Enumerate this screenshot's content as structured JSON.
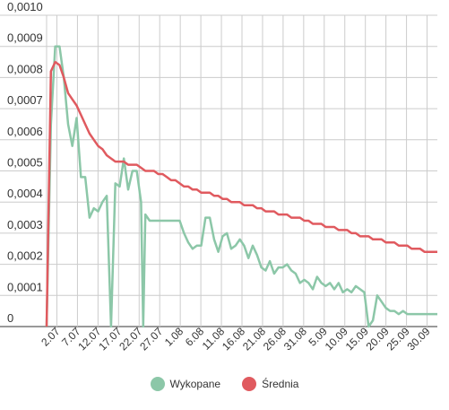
{
  "chart_data": {
    "type": "line",
    "y_ticks": [
      "0",
      "0,0001",
      "0,0002",
      "0,0003",
      "0,0004",
      "0,0005",
      "0,0006",
      "0,0007",
      "0,0008",
      "0,0009",
      "0,0010"
    ],
    "ylim": [
      0,
      0.001
    ],
    "x_tick_labels": [
      "2.07",
      "7.07",
      "12.07",
      "17.07",
      "22.07",
      "27.07",
      "1.08",
      "6.08",
      "11.08",
      "16.08",
      "21.08",
      "26.08",
      "31.08",
      "5.09",
      "10.09",
      "15.09",
      "20.09",
      "25.09",
      "30.09"
    ],
    "xlim": [
      0,
      91
    ],
    "grid": true,
    "legend_position": "bottom",
    "series": [
      {
        "name": "Wykopane",
        "color": "#8cc7a8",
        "points": [
          [
            0,
            0.0
          ],
          [
            1,
            0.00065
          ],
          [
            2,
            0.0009
          ],
          [
            3,
            0.0009
          ],
          [
            4,
            0.0008
          ],
          [
            5,
            0.00065
          ],
          [
            6,
            0.00058
          ],
          [
            7,
            0.00067
          ],
          [
            8,
            0.00048
          ],
          [
            9,
            0.00048
          ],
          [
            10,
            0.00035
          ],
          [
            11,
            0.00038
          ],
          [
            12,
            0.00037
          ],
          [
            13,
            0.0004
          ],
          [
            14,
            0.00042
          ],
          [
            15,
            0.0
          ],
          [
            16,
            0.00046
          ],
          [
            17,
            0.00045
          ],
          [
            18,
            0.00054
          ],
          [
            19,
            0.00044
          ],
          [
            20,
            0.0005
          ],
          [
            21,
            0.0005
          ],
          [
            22,
            0.0004
          ],
          [
            22.5,
            0.0
          ],
          [
            23,
            0.00036
          ],
          [
            24,
            0.00034
          ],
          [
            25,
            0.00034
          ],
          [
            30,
            0.00034
          ],
          [
            31,
            0.00034
          ],
          [
            32,
            0.0003
          ],
          [
            33,
            0.00027
          ],
          [
            34,
            0.00025
          ],
          [
            35,
            0.00026
          ],
          [
            36,
            0.00026
          ],
          [
            37,
            0.00035
          ],
          [
            38,
            0.00035
          ],
          [
            39,
            0.00028
          ],
          [
            40,
            0.00024
          ],
          [
            41,
            0.00029
          ],
          [
            42,
            0.0003
          ],
          [
            43,
            0.00025
          ],
          [
            44,
            0.00026
          ],
          [
            45,
            0.00028
          ],
          [
            46,
            0.00026
          ],
          [
            47,
            0.00022
          ],
          [
            48,
            0.00026
          ],
          [
            49,
            0.00023
          ],
          [
            50,
            0.00019
          ],
          [
            51,
            0.00018
          ],
          [
            52,
            0.00021
          ],
          [
            53,
            0.00017
          ],
          [
            54,
            0.00019
          ],
          [
            55,
            0.00019
          ],
          [
            56,
            0.0002
          ],
          [
            57,
            0.00018
          ],
          [
            58,
            0.00017
          ],
          [
            59,
            0.00014
          ],
          [
            60,
            0.00015
          ],
          [
            61,
            0.00014
          ],
          [
            62,
            0.00012
          ],
          [
            63,
            0.00016
          ],
          [
            64,
            0.00014
          ],
          [
            65,
            0.00013
          ],
          [
            66,
            0.00014
          ],
          [
            67,
            0.00012
          ],
          [
            68,
            0.00014
          ],
          [
            69,
            0.00011
          ],
          [
            70,
            0.00012
          ],
          [
            71,
            0.00011
          ],
          [
            72,
            0.00013
          ],
          [
            73,
            0.00012
          ],
          [
            74,
            0.00011
          ],
          [
            75,
            0.0
          ],
          [
            76,
            2e-05
          ],
          [
            77,
            0.0001
          ],
          [
            78,
            8e-05
          ],
          [
            79,
            6e-05
          ],
          [
            80,
            5e-05
          ],
          [
            81,
            5e-05
          ],
          [
            82,
            4e-05
          ],
          [
            83,
            5e-05
          ],
          [
            84,
            4e-05
          ],
          [
            85,
            4e-05
          ],
          [
            86,
            4e-05
          ],
          [
            87,
            4e-05
          ],
          [
            88,
            4e-05
          ],
          [
            89,
            4e-05
          ],
          [
            90,
            4e-05
          ],
          [
            91,
            4e-05
          ]
        ]
      },
      {
        "name": "Średnia",
        "color": "#e05a5f",
        "points": [
          [
            0,
            0.0
          ],
          [
            1,
            0.00082
          ],
          [
            2,
            0.00085
          ],
          [
            3,
            0.00084
          ],
          [
            4,
            0.0008
          ],
          [
            5,
            0.00075
          ],
          [
            6,
            0.00073
          ],
          [
            7,
            0.00071
          ],
          [
            8,
            0.00068
          ],
          [
            9,
            0.00065
          ],
          [
            10,
            0.00062
          ],
          [
            11,
            0.0006
          ],
          [
            12,
            0.00058
          ],
          [
            13,
            0.00057
          ],
          [
            14,
            0.00055
          ],
          [
            15,
            0.00054
          ],
          [
            16,
            0.00053
          ],
          [
            17,
            0.00053
          ],
          [
            18,
            0.00053
          ],
          [
            19,
            0.00052
          ],
          [
            20,
            0.00052
          ],
          [
            21,
            0.00052
          ],
          [
            22,
            0.00051
          ],
          [
            23,
            0.0005
          ],
          [
            24,
            0.0005
          ],
          [
            25,
            0.0005
          ],
          [
            26,
            0.00049
          ],
          [
            27,
            0.00049
          ],
          [
            28,
            0.00048
          ],
          [
            29,
            0.00047
          ],
          [
            30,
            0.00047
          ],
          [
            31,
            0.00046
          ],
          [
            32,
            0.00045
          ],
          [
            33,
            0.00045
          ],
          [
            34,
            0.00044
          ],
          [
            35,
            0.00044
          ],
          [
            36,
            0.00043
          ],
          [
            37,
            0.00043
          ],
          [
            38,
            0.00043
          ],
          [
            39,
            0.00042
          ],
          [
            40,
            0.00042
          ],
          [
            41,
            0.00041
          ],
          [
            42,
            0.00041
          ],
          [
            43,
            0.0004
          ],
          [
            44,
            0.0004
          ],
          [
            45,
            0.0004
          ],
          [
            46,
            0.00039
          ],
          [
            47,
            0.00039
          ],
          [
            48,
            0.00039
          ],
          [
            49,
            0.00038
          ],
          [
            50,
            0.00038
          ],
          [
            51,
            0.00037
          ],
          [
            52,
            0.00037
          ],
          [
            53,
            0.00037
          ],
          [
            54,
            0.00036
          ],
          [
            55,
            0.00036
          ],
          [
            56,
            0.00036
          ],
          [
            57,
            0.00035
          ],
          [
            58,
            0.00035
          ],
          [
            59,
            0.00035
          ],
          [
            60,
            0.00034
          ],
          [
            61,
            0.00034
          ],
          [
            62,
            0.00033
          ],
          [
            63,
            0.00033
          ],
          [
            64,
            0.00033
          ],
          [
            65,
            0.00032
          ],
          [
            66,
            0.00032
          ],
          [
            67,
            0.00032
          ],
          [
            68,
            0.00031
          ],
          [
            69,
            0.00031
          ],
          [
            70,
            0.00031
          ],
          [
            71,
            0.0003
          ],
          [
            72,
            0.0003
          ],
          [
            73,
            0.00029
          ],
          [
            74,
            0.00029
          ],
          [
            75,
            0.00029
          ],
          [
            76,
            0.00028
          ],
          [
            77,
            0.00028
          ],
          [
            78,
            0.00028
          ],
          [
            79,
            0.00027
          ],
          [
            80,
            0.00027
          ],
          [
            81,
            0.00027
          ],
          [
            82,
            0.00026
          ],
          [
            83,
            0.00026
          ],
          [
            84,
            0.00026
          ],
          [
            85,
            0.00025
          ],
          [
            86,
            0.00025
          ],
          [
            87,
            0.00025
          ],
          [
            88,
            0.00024
          ],
          [
            89,
            0.00024
          ],
          [
            90,
            0.00024
          ],
          [
            91,
            0.00024
          ]
        ]
      }
    ]
  },
  "legend": {
    "items": [
      {
        "label": "Wykopane",
        "color": "#8cc7a8"
      },
      {
        "label": "Średnia",
        "color": "#e05a5f"
      }
    ]
  }
}
